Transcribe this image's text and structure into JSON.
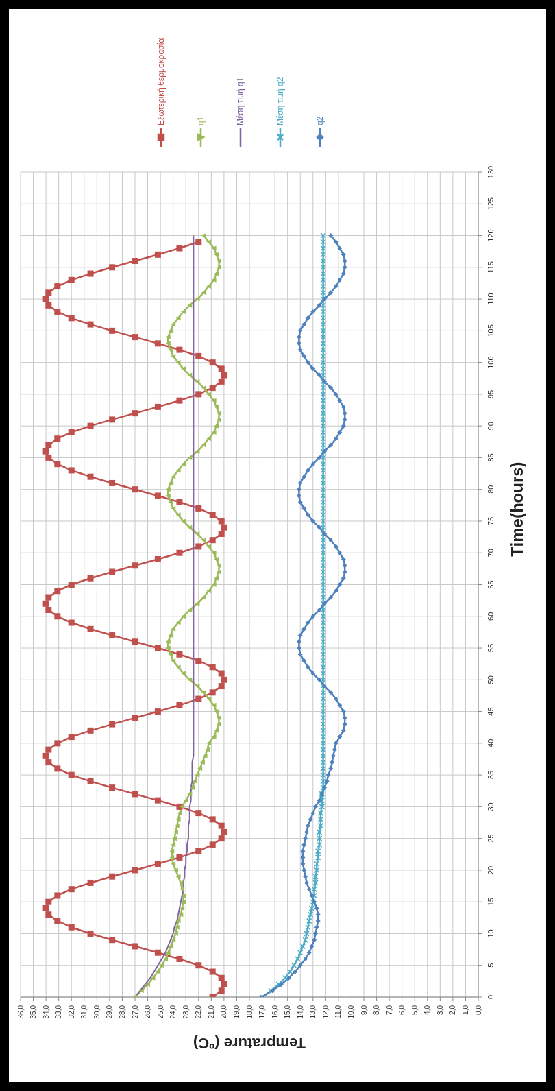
{
  "chart_data": {
    "type": "line",
    "xlabel": "Temprature (ºC)",
    "ylabel": "Time(hours)",
    "ylim": [
      0,
      130
    ],
    "yticks": [
      0,
      5,
      10,
      15,
      20,
      25,
      30,
      35,
      40,
      45,
      50,
      55,
      60,
      65,
      70,
      75,
      80,
      85,
      90,
      95,
      100,
      105,
      110,
      115,
      120,
      125,
      130
    ],
    "xlim": [
      36,
      0
    ],
    "xticks": [
      {
        "value": 0,
        "label": "0,0"
      },
      {
        "value": 1,
        "label": "1,0"
      },
      {
        "value": 2,
        "label": "2,0"
      },
      {
        "value": 3,
        "label": "3,0"
      },
      {
        "value": 4,
        "label": "4,0"
      },
      {
        "value": 5,
        "label": "5,0"
      },
      {
        "value": 6,
        "label": "6,0"
      },
      {
        "value": 7,
        "label": "7,0"
      },
      {
        "value": 8,
        "label": "8,0"
      },
      {
        "value": 9,
        "label": "9,0"
      },
      {
        "value": 10,
        "label": "10,0"
      },
      {
        "value": 11,
        "label": "11,0"
      },
      {
        "value": 12,
        "label": "12,0"
      },
      {
        "value": 13,
        "label": "13,0"
      },
      {
        "value": 14,
        "label": "14,0"
      },
      {
        "value": 15,
        "label": "15,0"
      },
      {
        "value": 16,
        "label": "16,0"
      },
      {
        "value": 17,
        "label": "17,0"
      },
      {
        "value": 18,
        "label": "18,0"
      },
      {
        "value": 19,
        "label": "19,0"
      },
      {
        "value": 20,
        "label": "20,0"
      },
      {
        "value": 21,
        "label": "21,0"
      },
      {
        "value": 22,
        "label": "22,0"
      },
      {
        "value": 23,
        "label": "23,0"
      },
      {
        "value": 24,
        "label": "24,0"
      },
      {
        "value": 25,
        "label": "25,0"
      },
      {
        "value": 26,
        "label": "26,0"
      },
      {
        "value": 27,
        "label": "27,0"
      },
      {
        "value": 28,
        "label": "28,0"
      },
      {
        "value": 29,
        "label": "29,0"
      },
      {
        "value": 30,
        "label": "30,0"
      },
      {
        "value": 31,
        "label": "31,0"
      },
      {
        "value": 32,
        "label": "32,0"
      },
      {
        "value": 33,
        "label": "33,0"
      },
      {
        "value": 34,
        "label": "34,0"
      },
      {
        "value": 35,
        "label": "35,0"
      },
      {
        "value": 36,
        "label": "36,0"
      }
    ],
    "grid": true,
    "legend": "top",
    "series": [
      {
        "name": "Εξωτερική θερμοκρασία",
        "color": "#c0504d",
        "marker": "square",
        "x": [
          20.9,
          20.2,
          20.0,
          20.2,
          20.9,
          22.0,
          23.5,
          25.2,
          27.0,
          28.8,
          30.5,
          32.0,
          33.1,
          33.8,
          34.0,
          33.8,
          33.1,
          32.0,
          30.5,
          28.8,
          27.0,
          25.2,
          23.5,
          22.0,
          20.9,
          20.2,
          20.0,
          20.2,
          20.9,
          22.0,
          23.5,
          25.2,
          27.0,
          28.8,
          30.5,
          32.0,
          33.1,
          33.8,
          34.0,
          33.8,
          33.1,
          32.0,
          30.5,
          28.8,
          27.0,
          25.2,
          23.5,
          22.0,
          20.9,
          20.2,
          20.0,
          20.2,
          20.9,
          22.0,
          23.5,
          25.2,
          27.0,
          28.8,
          30.5,
          32.0,
          33.1,
          33.8,
          34.0,
          33.8,
          33.1,
          32.0,
          30.5,
          28.8,
          27.0,
          25.2,
          23.5,
          22.0,
          20.9,
          20.2,
          20.0,
          20.2,
          20.9,
          22.0,
          23.5,
          25.2,
          27.0,
          28.8,
          30.5,
          32.0,
          33.1,
          33.8,
          34.0,
          33.8,
          33.1,
          32.0,
          30.5,
          28.8,
          27.0,
          25.2,
          23.5,
          22.0,
          20.9,
          20.2,
          20.0,
          20.2,
          20.9,
          22.0,
          23.5,
          25.2,
          27.0,
          28.8,
          30.5,
          32.0,
          33.1,
          33.8,
          34.0,
          33.8,
          33.1,
          32.0,
          30.5,
          28.8,
          27.0,
          25.2,
          23.5,
          22.0
        ],
        "values": [
          0,
          1,
          2,
          3,
          4,
          5,
          6,
          7,
          8,
          9,
          10,
          11,
          12,
          13,
          14,
          15,
          16,
          17,
          18,
          19,
          20,
          21,
          22,
          23,
          24,
          25,
          26,
          27,
          28,
          29,
          30,
          31,
          32,
          33,
          34,
          35,
          36,
          37,
          38,
          39,
          40,
          41,
          42,
          43,
          44,
          45,
          46,
          47,
          48,
          49,
          50,
          51,
          52,
          53,
          54,
          55,
          56,
          57,
          58,
          59,
          60,
          61,
          62,
          63,
          64,
          65,
          66,
          67,
          68,
          69,
          70,
          71,
          72,
          73,
          74,
          75,
          76,
          77,
          78,
          79,
          80,
          81,
          82,
          83,
          84,
          85,
          86,
          87,
          88,
          89,
          90,
          91,
          92,
          93,
          94,
          95,
          96,
          97,
          98,
          99,
          100,
          101,
          102,
          103,
          104,
          105,
          106,
          107,
          108,
          109,
          110,
          111,
          112,
          113,
          114,
          115,
          116,
          117,
          118,
          119
        ]
      },
      {
        "name": "q1",
        "color": "#9bbb59",
        "marker": "triangle",
        "x": [
          27.0,
          26.5,
          26.0,
          25.6,
          25.2,
          24.9,
          24.6,
          24.4,
          24.2,
          24.0,
          23.8,
          23.7,
          23.6,
          23.4,
          23.3,
          23.2,
          23.2,
          23.3,
          23.4,
          23.6,
          23.8,
          24.0,
          24.1,
          24.1,
          24.0,
          23.9,
          23.8,
          23.7,
          23.6,
          23.5,
          23.3,
          23.0,
          22.7,
          22.5,
          22.3,
          22.1,
          21.9,
          21.7,
          21.5,
          21.3,
          21.2,
          20.8,
          20.6,
          20.4,
          20.4,
          20.6,
          20.8,
          21.2,
          21.6,
          22.1,
          22.7,
          23.2,
          23.6,
          24.0,
          24.2,
          24.4,
          24.4,
          24.2,
          24.0,
          23.6,
          23.2,
          22.7,
          22.1,
          21.6,
          21.2,
          20.8,
          20.6,
          20.4,
          20.4,
          20.6,
          20.8,
          21.2,
          21.6,
          22.1,
          22.7,
          23.2,
          23.6,
          24.0,
          24.2,
          24.4,
          24.4,
          24.2,
          24.0,
          23.6,
          23.2,
          22.7,
          22.1,
          21.6,
          21.2,
          20.8,
          20.6,
          20.4,
          20.4,
          20.6,
          20.8,
          21.2,
          21.6,
          22.1,
          22.7,
          23.2,
          23.6,
          24.0,
          24.2,
          24.4,
          24.4,
          24.2,
          24.0,
          23.6,
          23.2,
          22.7,
          22.1,
          21.6,
          21.2,
          20.8,
          20.6,
          20.4,
          20.4,
          20.6,
          20.8,
          21.2,
          21.6
        ],
        "values": [
          0,
          1,
          2,
          3,
          4,
          5,
          6,
          7,
          8,
          9,
          10,
          11,
          12,
          13,
          14,
          15,
          16,
          17,
          18,
          19,
          20,
          21,
          22,
          23,
          24,
          25,
          26,
          27,
          28,
          29,
          30,
          31,
          32,
          33,
          34,
          35,
          36,
          37,
          38,
          39,
          40,
          41,
          42,
          43,
          44,
          45,
          46,
          47,
          48,
          49,
          50,
          51,
          52,
          53,
          54,
          55,
          56,
          57,
          58,
          59,
          60,
          61,
          62,
          63,
          64,
          65,
          66,
          67,
          68,
          69,
          70,
          71,
          72,
          73,
          74,
          75,
          76,
          77,
          78,
          79,
          80,
          81,
          82,
          83,
          84,
          85,
          86,
          87,
          88,
          89,
          90,
          91,
          92,
          93,
          94,
          95,
          96,
          97,
          98,
          99,
          100,
          101,
          102,
          103,
          104,
          105,
          106,
          107,
          108,
          109,
          110,
          111,
          112,
          113,
          114,
          115,
          116,
          117,
          118,
          119,
          120
        ]
      },
      {
        "name": "Μέση τιμή q1",
        "color": "#8064a2",
        "marker": "none",
        "x": [
          27.0,
          26.6,
          26.2,
          25.8,
          25.5,
          25.2,
          24.9,
          24.6,
          24.4,
          24.2,
          24.0,
          23.9,
          23.7,
          23.6,
          23.5,
          23.4,
          23.3,
          23.2,
          23.2,
          23.1,
          23.1,
          23.0,
          23.0,
          22.9,
          22.9,
          22.8,
          22.8,
          22.8,
          22.7,
          22.7,
          22.7,
          22.6,
          22.6,
          22.6,
          22.5,
          22.5,
          22.5,
          22.5,
          22.4,
          22.4,
          22.4,
          22.4,
          22.4,
          22.4,
          22.4,
          22.4,
          22.4,
          22.4,
          22.4,
          22.4,
          22.4,
          22.4,
          22.4,
          22.4,
          22.4,
          22.4,
          22.4,
          22.4,
          22.4,
          22.4,
          22.4,
          22.4,
          22.4,
          22.4,
          22.4,
          22.4,
          22.4,
          22.4,
          22.4,
          22.4,
          22.4,
          22.4,
          22.4,
          22.4,
          22.4,
          22.4,
          22.4,
          22.4,
          22.4,
          22.4,
          22.4,
          22.4,
          22.4,
          22.4,
          22.4,
          22.4,
          22.4,
          22.4,
          22.4,
          22.4,
          22.4,
          22.4,
          22.4,
          22.4,
          22.4,
          22.4,
          22.4,
          22.4,
          22.4,
          22.4,
          22.4,
          22.4,
          22.4,
          22.4,
          22.4,
          22.4,
          22.4,
          22.4,
          22.4,
          22.4,
          22.4,
          22.4,
          22.4,
          22.4,
          22.4,
          22.4,
          22.4,
          22.4,
          22.4,
          22.4,
          22.4
        ],
        "values": [
          0,
          1,
          2,
          3,
          4,
          5,
          6,
          7,
          8,
          9,
          10,
          11,
          12,
          13,
          14,
          15,
          16,
          17,
          18,
          19,
          20,
          21,
          22,
          23,
          24,
          25,
          26,
          27,
          28,
          29,
          30,
          31,
          32,
          33,
          34,
          35,
          36,
          37,
          38,
          39,
          40,
          41,
          42,
          43,
          44,
          45,
          46,
          47,
          48,
          49,
          50,
          51,
          52,
          53,
          54,
          55,
          56,
          57,
          58,
          59,
          60,
          61,
          62,
          63,
          64,
          65,
          66,
          67,
          68,
          69,
          70,
          71,
          72,
          73,
          74,
          75,
          76,
          77,
          78,
          79,
          80,
          81,
          82,
          83,
          84,
          85,
          86,
          87,
          88,
          89,
          90,
          91,
          92,
          93,
          94,
          95,
          96,
          97,
          98,
          99,
          100,
          101,
          102,
          103,
          104,
          105,
          106,
          107,
          108,
          109,
          110,
          111,
          112,
          113,
          114,
          115,
          116,
          117,
          118,
          119,
          120
        ]
      },
      {
        "name": "Μέση τιμή q2",
        "color": "#4bacc6",
        "marker": "cross",
        "x": [
          17.0,
          16.3,
          15.7,
          15.2,
          14.8,
          14.5,
          14.2,
          14.0,
          13.8,
          13.6,
          13.5,
          13.4,
          13.3,
          13.2,
          13.1,
          13.0,
          12.9,
          12.9,
          12.8,
          12.8,
          12.7,
          12.7,
          12.6,
          12.6,
          12.5,
          12.5,
          12.5,
          12.4,
          12.4,
          12.4,
          12.3,
          12.3,
          12.3,
          12.2,
          12.2,
          12.2,
          12.2,
          12.2,
          12.2,
          12.2,
          12.2,
          12.2,
          12.2,
          12.2,
          12.2,
          12.2,
          12.2,
          12.2,
          12.2,
          12.2,
          12.2,
          12.2,
          12.2,
          12.2,
          12.2,
          12.2,
          12.2,
          12.2,
          12.2,
          12.2,
          12.2,
          12.2,
          12.2,
          12.2,
          12.2,
          12.2,
          12.2,
          12.2,
          12.2,
          12.2,
          12.2,
          12.2,
          12.2,
          12.2,
          12.2,
          12.2,
          12.2,
          12.2,
          12.2,
          12.2,
          12.2,
          12.2,
          12.2,
          12.2,
          12.2,
          12.2,
          12.2,
          12.2,
          12.2,
          12.2,
          12.2,
          12.2,
          12.2,
          12.2,
          12.2,
          12.2,
          12.2,
          12.2,
          12.2,
          12.2,
          12.2,
          12.2,
          12.2,
          12.2,
          12.2,
          12.2,
          12.2,
          12.2,
          12.2,
          12.2,
          12.2,
          12.2,
          12.2,
          12.2,
          12.2,
          12.2,
          12.2,
          12.2,
          12.2,
          12.2,
          12.2
        ],
        "values": [
          0,
          1,
          2,
          3,
          4,
          5,
          6,
          7,
          8,
          9,
          10,
          11,
          12,
          13,
          14,
          15,
          16,
          17,
          18,
          19,
          20,
          21,
          22,
          23,
          24,
          25,
          26,
          27,
          28,
          29,
          30,
          31,
          32,
          33,
          34,
          35,
          36,
          37,
          38,
          39,
          40,
          41,
          42,
          43,
          44,
          45,
          46,
          47,
          48,
          49,
          50,
          51,
          52,
          53,
          54,
          55,
          56,
          57,
          58,
          59,
          60,
          61,
          62,
          63,
          64,
          65,
          66,
          67,
          68,
          69,
          70,
          71,
          72,
          73,
          74,
          75,
          76,
          77,
          78,
          79,
          80,
          81,
          82,
          83,
          84,
          85,
          86,
          87,
          88,
          89,
          90,
          91,
          92,
          93,
          94,
          95,
          96,
          97,
          98,
          99,
          100,
          101,
          102,
          103,
          104,
          105,
          106,
          107,
          108,
          109,
          110,
          111,
          112,
          113,
          114,
          115,
          116,
          117,
          118,
          119,
          120
        ]
      },
      {
        "name": "q2",
        "color": "#4f81bd",
        "marker": "diamond",
        "x": [
          17.0,
          16.2,
          15.5,
          14.9,
          14.4,
          14.0,
          13.6,
          13.3,
          13.1,
          12.9,
          12.8,
          12.7,
          12.6,
          12.6,
          12.7,
          12.9,
          13.1,
          13.3,
          13.5,
          13.6,
          13.7,
          13.8,
          13.8,
          13.8,
          13.7,
          13.6,
          13.5,
          13.4,
          13.2,
          13.0,
          12.8,
          12.5,
          12.3,
          12.1,
          11.9,
          11.8,
          11.6,
          11.5,
          11.4,
          11.3,
          11.2,
          10.9,
          10.6,
          10.5,
          10.5,
          10.6,
          10.9,
          11.2,
          11.6,
          12.1,
          12.5,
          13.0,
          13.4,
          13.7,
          14.0,
          14.1,
          14.1,
          14.0,
          13.7,
          13.4,
          13.0,
          12.5,
          12.1,
          11.6,
          11.2,
          10.9,
          10.6,
          10.5,
          10.5,
          10.6,
          10.9,
          11.2,
          11.6,
          12.1,
          12.5,
          13.0,
          13.4,
          13.7,
          14.0,
          14.1,
          14.1,
          14.0,
          13.7,
          13.4,
          13.0,
          12.5,
          12.1,
          11.6,
          11.2,
          10.9,
          10.6,
          10.5,
          10.5,
          10.6,
          10.9,
          11.2,
          11.6,
          12.1,
          12.5,
          13.0,
          13.4,
          13.7,
          14.0,
          14.1,
          14.1,
          14.0,
          13.7,
          13.4,
          13.0,
          12.5,
          12.1,
          11.6,
          11.2,
          10.9,
          10.6,
          10.5,
          10.5,
          10.6,
          10.9,
          11.2,
          11.6
        ],
        "values": [
          0,
          1,
          2,
          3,
          4,
          5,
          6,
          7,
          8,
          9,
          10,
          11,
          12,
          13,
          14,
          15,
          16,
          17,
          18,
          19,
          20,
          21,
          22,
          23,
          24,
          25,
          26,
          27,
          28,
          29,
          30,
          31,
          32,
          33,
          34,
          35,
          36,
          37,
          38,
          39,
          40,
          41,
          42,
          43,
          44,
          45,
          46,
          47,
          48,
          49,
          50,
          51,
          52,
          53,
          54,
          55,
          56,
          57,
          58,
          59,
          60,
          61,
          62,
          63,
          64,
          65,
          66,
          67,
          68,
          69,
          70,
          71,
          72,
          73,
          74,
          75,
          76,
          77,
          78,
          79,
          80,
          81,
          82,
          83,
          84,
          85,
          86,
          87,
          88,
          89,
          90,
          91,
          92,
          93,
          94,
          95,
          96,
          97,
          98,
          99,
          100,
          101,
          102,
          103,
          104,
          105,
          106,
          107,
          108,
          109,
          110,
          111,
          112,
          113,
          114,
          115,
          116,
          117,
          118,
          119,
          120
        ]
      }
    ]
  }
}
